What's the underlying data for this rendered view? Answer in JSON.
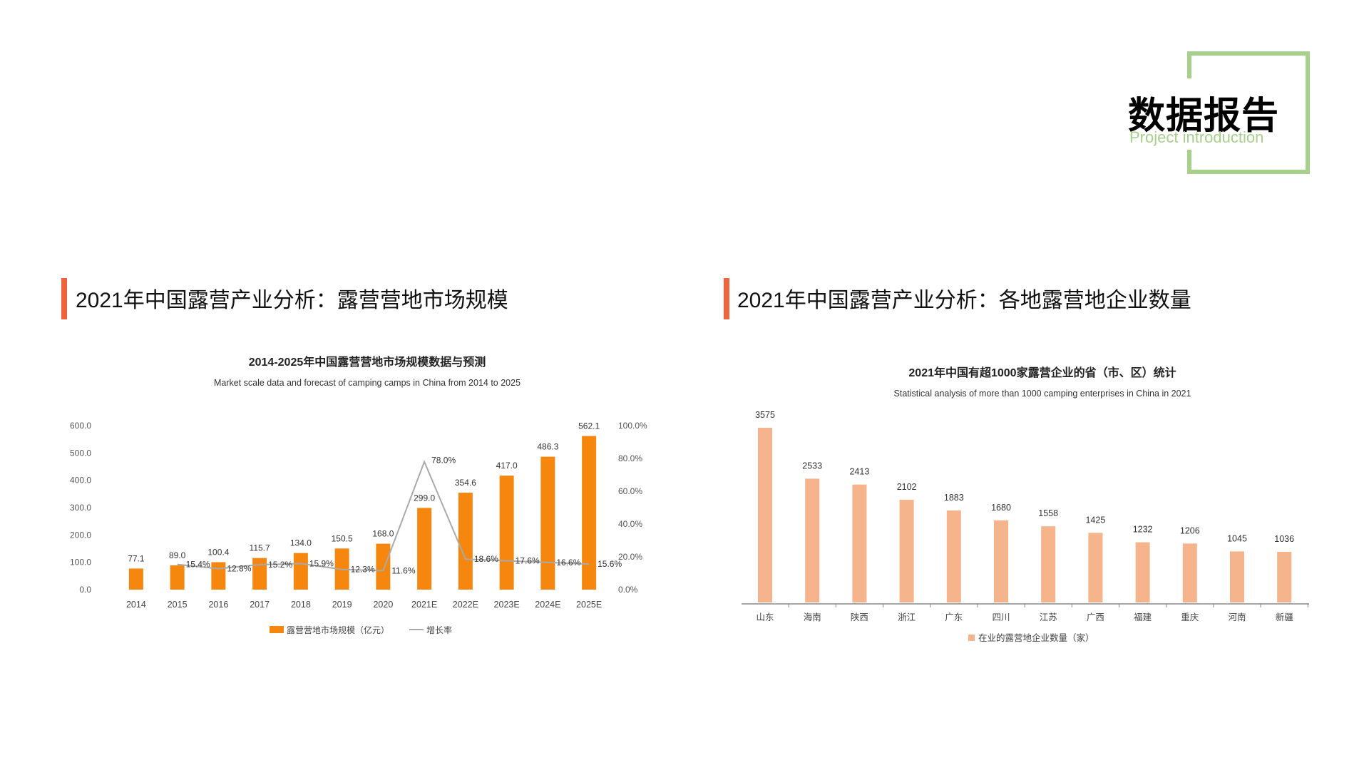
{
  "badge": {
    "title": "数据报告",
    "subtitle": "Project introduction"
  },
  "left_section": {
    "title": "2021年中国露营产业分析：露营营地市场规模"
  },
  "right_section": {
    "title": "2021年中国露营产业分析：各地露营地企业数量"
  },
  "colors": {
    "accent": "#f0643c",
    "bar_left": "#f5870f",
    "bar_right": "#f6b48c",
    "badge_green": "#a8d08d",
    "growth_line": "#aaaaaa"
  },
  "chart_data": [
    {
      "type": "bar",
      "title": "2014-2025年中国露营营地市场规模数据与预测",
      "subtitle": "Market scale data and forecast of camping camps in China from 2014 to 2025",
      "categories": [
        "2014",
        "2015",
        "2016",
        "2017",
        "2018",
        "2019",
        "2020",
        "2021E",
        "2022E",
        "2023E",
        "2024E",
        "2025E"
      ],
      "series": [
        {
          "name": "露营营地市场规模（亿元）",
          "type": "bar",
          "values": [
            77.1,
            89.0,
            100.4,
            115.7,
            134.0,
            150.5,
            168.0,
            299.0,
            354.6,
            417.0,
            486.3,
            562.1
          ],
          "labels": [
            "77.1",
            "89.0",
            "100.4",
            "115.7",
            "134.0",
            "150.5",
            "168.0",
            "299.0",
            "354.6",
            "417.0",
            "486.3",
            "562.1"
          ]
        },
        {
          "name": "增长率",
          "type": "line",
          "axis": "right",
          "values": [
            null,
            15.4,
            12.8,
            15.2,
            15.9,
            12.3,
            11.6,
            78.0,
            18.6,
            17.6,
            16.6,
            15.6
          ],
          "labels": [
            "",
            "15.4%",
            "12.8%",
            "15.2%",
            "15.9%",
            "12.3%",
            "11.6%",
            "78.0%",
            "18.6%",
            "17.6%",
            "16.6%",
            "15.6%"
          ]
        }
      ],
      "ylim": [
        0,
        600
      ],
      "yticks": [
        "0.0",
        "100.0",
        "200.0",
        "300.0",
        "400.0",
        "500.0",
        "600.0"
      ],
      "y2lim": [
        0,
        100
      ],
      "y2ticks": [
        "0.0%",
        "20.0%",
        "40.0%",
        "60.0%",
        "80.0%",
        "100.0%"
      ],
      "legend": "bottom",
      "grid": false
    },
    {
      "type": "bar",
      "title": "2021年中国有超1000家露营企业的省（市、区）统计",
      "subtitle": "Statistical analysis of more than 1000 camping enterprises in China in 2021",
      "categories": [
        "山东",
        "海南",
        "陕西",
        "浙江",
        "广东",
        "四川",
        "江苏",
        "广西",
        "福建",
        "重庆",
        "河南",
        "新疆"
      ],
      "series": [
        {
          "name": "在业的露营地企业数量（家）",
          "values": [
            3575,
            2533,
            2413,
            2102,
            1883,
            1680,
            1558,
            1425,
            1232,
            1206,
            1045,
            1036
          ]
        }
      ],
      "ylim": [
        0,
        3575
      ],
      "legend": "bottom",
      "grid": false
    }
  ]
}
